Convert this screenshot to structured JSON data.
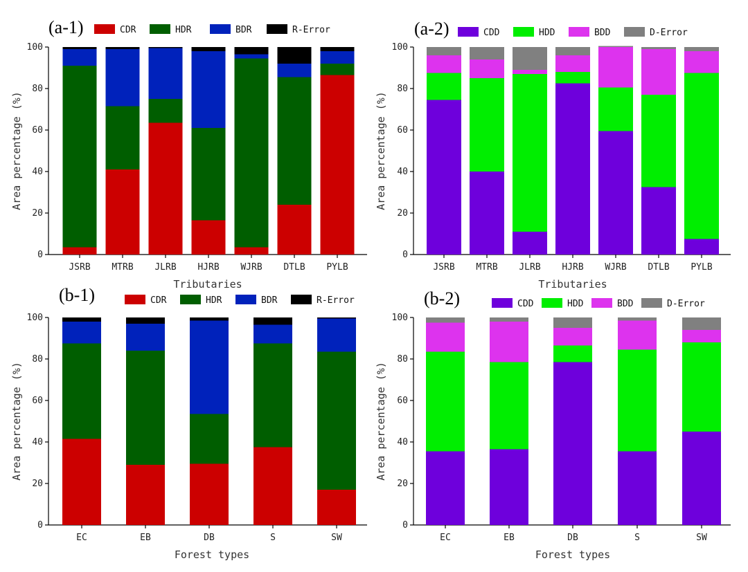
{
  "chart_data": [
    {
      "id": "a1",
      "panel_label": "(a-1)",
      "type": "bar",
      "stacked": true,
      "categories": [
        "JSRB",
        "MTRB",
        "JLRB",
        "HJRB",
        "WJRB",
        "DTLB",
        "PYLB"
      ],
      "series": [
        {
          "name": "CDR",
          "color": "#cc0000",
          "values": [
            3.5,
            41,
            63.5,
            16.5,
            3.5,
            24,
            86.5
          ]
        },
        {
          "name": "HDR",
          "color": "#005e00",
          "values": [
            87.5,
            30.5,
            11.5,
            44.5,
            91,
            61.5,
            5.5
          ]
        },
        {
          "name": "BDR",
          "color": "#0022bb",
          "values": [
            8,
            27.5,
            24.5,
            37,
            2,
            6.5,
            6
          ]
        },
        {
          "name": "R-Error",
          "color": "#000000",
          "values": [
            1,
            1,
            0.5,
            2,
            3.5,
            8,
            2
          ]
        }
      ],
      "xlabel": "Tributaries",
      "ylabel": "Area percentage (%)",
      "ylim": [
        0,
        100
      ],
      "yticks": [
        "0",
        "20",
        "40",
        "60",
        "80",
        "100"
      ],
      "legend": "top"
    },
    {
      "id": "a2",
      "panel_label": "(a-2)",
      "type": "bar",
      "stacked": true,
      "categories": [
        "JSRB",
        "MTRB",
        "JLRB",
        "HJRB",
        "WJRB",
        "DTLB",
        "PYLB"
      ],
      "series": [
        {
          "name": "CDD",
          "color": "#6e00dc",
          "values": [
            74.5,
            40,
            11,
            82.5,
            59.5,
            32.5,
            7.5
          ]
        },
        {
          "name": "HDD",
          "color": "#00ee00",
          "values": [
            13,
            45,
            76,
            5.5,
            21,
            44.5,
            80
          ]
        },
        {
          "name": "BDD",
          "color": "#dd33ee",
          "values": [
            8.5,
            9,
            2,
            8,
            19.5,
            22,
            10.5
          ]
        },
        {
          "name": "D-Error",
          "color": "#808080",
          "values": [
            4,
            6,
            11,
            4,
            0.5,
            1,
            2
          ]
        }
      ],
      "xlabel": "Tributaries",
      "ylabel": "Area percentage (%)",
      "ylim": [
        0,
        100
      ],
      "yticks": [
        "0",
        "20",
        "40",
        "60",
        "80",
        "100"
      ],
      "legend": "top"
    },
    {
      "id": "b1",
      "panel_label": "(b-1)",
      "type": "bar",
      "stacked": true,
      "categories": [
        "EC",
        "EB",
        "DB",
        "S",
        "SW"
      ],
      "series": [
        {
          "name": "CDR",
          "color": "#cc0000",
          "values": [
            41.5,
            29,
            29.5,
            37.5,
            17
          ]
        },
        {
          "name": "HDR",
          "color": "#005e00",
          "values": [
            46,
            55,
            24,
            50,
            66.5
          ]
        },
        {
          "name": "BDR",
          "color": "#0022bb",
          "values": [
            10.5,
            13,
            45,
            9,
            16
          ]
        },
        {
          "name": "R-Error",
          "color": "#000000",
          "values": [
            2,
            3,
            1.5,
            3.5,
            0.5
          ]
        }
      ],
      "xlabel": "Forest types",
      "ylabel": "Area percentage (%)",
      "ylim": [
        0,
        100
      ],
      "yticks": [
        "0",
        "20",
        "40",
        "60",
        "80",
        "100"
      ],
      "legend": "top"
    },
    {
      "id": "b2",
      "panel_label": "(b-2)",
      "type": "bar",
      "stacked": true,
      "categories": [
        "EC",
        "EB",
        "DB",
        "S",
        "SW"
      ],
      "series": [
        {
          "name": "CDD",
          "color": "#6e00dc",
          "values": [
            35.5,
            36.5,
            78.5,
            35.5,
            45
          ]
        },
        {
          "name": "HDD",
          "color": "#00ee00",
          "values": [
            48,
            42,
            8,
            49,
            43
          ]
        },
        {
          "name": "BDD",
          "color": "#dd33ee",
          "values": [
            14,
            19.5,
            8.5,
            14,
            6
          ]
        },
        {
          "name": "D-Error",
          "color": "#808080",
          "values": [
            2.5,
            2,
            5,
            1.5,
            6
          ]
        }
      ],
      "xlabel": "Forest types",
      "ylabel": "Area percentage (%)",
      "ylim": [
        0,
        100
      ],
      "yticks": [
        "0",
        "20",
        "40",
        "60",
        "80",
        "100"
      ],
      "legend": "top"
    }
  ]
}
